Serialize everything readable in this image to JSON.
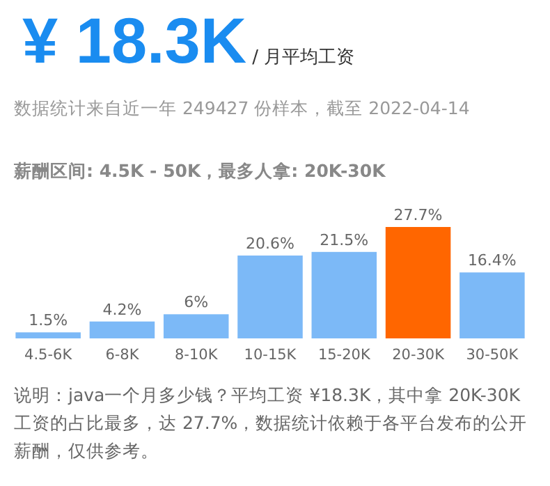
{
  "chart_data": {
    "type": "bar",
    "title": "¥ 18.3K",
    "subtitle": "/ 月平均工资",
    "annotations": [
      "数据统计来自近一年 249427 份样本，截至 2022-04-14",
      "薪酬区间: 4.5K - 50K，最多人拿: 20K-30K",
      "说明：java一个月多少钱？平均工资 ¥18.3K，其中拿 20K-30K 工资的占比最多，达 27.7%，数据统计依赖于各平台发布的公开薪酬，仅供参考。"
    ],
    "categories": [
      "4.5-6K",
      "6-8K",
      "8-10K",
      "10-15K",
      "15-20K",
      "20-30K",
      "30-50K"
    ],
    "values": [
      1.5,
      4.2,
      6,
      20.6,
      21.5,
      27.7,
      16.4
    ],
    "value_labels": [
      "1.5%",
      "4.2%",
      "6%",
      "20.6%",
      "21.5%",
      "27.7%",
      "16.4%"
    ],
    "colors": [
      "#7cb9f7",
      "#7cb9f7",
      "#7cb9f7",
      "#7cb9f7",
      "#7cb9f7",
      "#ff6600",
      "#7cb9f7"
    ]
  }
}
